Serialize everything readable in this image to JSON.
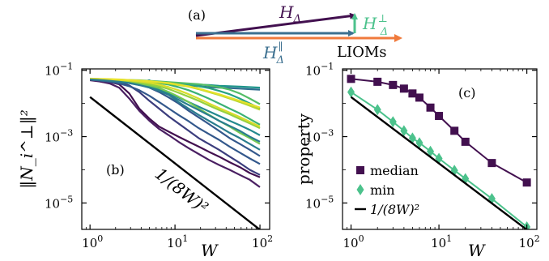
{
  "colors": {
    "purple": "#42104f",
    "teal": "#3b6f8f",
    "green": "#4cc28c",
    "orange": "#f07a3c",
    "black": "#000000"
  },
  "panel_a": {
    "label": "(a)",
    "h_delta": "H",
    "h_delta_sub": "Δ",
    "h_perp": "H",
    "h_perp_sub": "Δ",
    "h_perp_sup": "⊥",
    "h_par": "H",
    "h_par_sub": "Δ",
    "h_par_sup": "∥",
    "lioms": "LIOMs"
  },
  "chart_data": [
    {
      "panel": "(b)",
      "type": "line",
      "xlabel": "W",
      "ylabel": "‖N_i^⊥‖²",
      "x_scale": "log",
      "y_scale": "log",
      "xlim": [
        0.8,
        130
      ],
      "ylim": [
        1.6e-06,
        0.11
      ],
      "x_ticks": [
        1,
        10,
        100
      ],
      "x_tick_labels": [
        "10",
        "10",
        "10"
      ],
      "x_tick_exponents": [
        "0",
        "1",
        "2"
      ],
      "y_ticks": [
        1e-05,
        0.001,
        0.1
      ],
      "y_tick_labels": [
        "10",
        "10",
        "10"
      ],
      "y_tick_exponents": [
        "−5",
        "−3",
        "−1"
      ],
      "reference_line": {
        "label": "1/(8W)²",
        "x": [
          1,
          100
        ],
        "y": [
          0.015625,
          1.5625e-06
        ]
      },
      "x": [
        1,
        1.3,
        1.7,
        2.2,
        2.9,
        3.8,
        5,
        6.5,
        8.5,
        11,
        14.5,
        19,
        25,
        33,
        44,
        58,
        76,
        100
      ],
      "series": [
        {
          "color": "#42104f",
          "values": [
            0.051,
            0.048,
            0.044,
            0.038,
            0.02,
            0.007,
            0.0035,
            0.002,
            0.0014,
            0.001,
            0.0007,
            0.0005,
            0.00035,
            0.00025,
            0.00017,
            0.00012,
            8e-05,
            6e-05
          ]
        },
        {
          "color": "#4a1f62",
          "values": [
            0.05,
            0.046,
            0.04,
            0.03,
            0.014,
            0.006,
            0.003,
            0.0017,
            0.0011,
            0.0007,
            0.00045,
            0.0003,
            0.0002,
            0.00014,
            0.0001,
            7e-05,
            5e-05,
            3e-05
          ]
        },
        {
          "color": "#3b3d7d",
          "values": [
            0.052,
            0.05,
            0.047,
            0.043,
            0.035,
            0.022,
            0.012,
            0.007,
            0.004,
            0.0025,
            0.0015,
            0.0009,
            0.0006,
            0.0004,
            0.00025,
            0.00016,
            0.0001,
            7e-05
          ]
        },
        {
          "color": "#33588c",
          "values": [
            0.052,
            0.05,
            0.048,
            0.046,
            0.043,
            0.037,
            0.03,
            0.022,
            0.015,
            0.01,
            0.006,
            0.0038,
            0.0024,
            0.0015,
            0.0009,
            0.0006,
            0.0004,
            0.00026
          ]
        },
        {
          "color": "#2f6d8e",
          "values": [
            0.053,
            0.052,
            0.051,
            0.049,
            0.047,
            0.045,
            0.043,
            0.041,
            0.039,
            0.037,
            0.035,
            0.033,
            0.031,
            0.03,
            0.029,
            0.028,
            0.027,
            0.026
          ]
        },
        {
          "color": "#2a7d8e",
          "values": [
            0.053,
            0.051,
            0.049,
            0.047,
            0.044,
            0.042,
            0.05,
            0.03,
            0.018,
            0.011,
            0.007,
            0.0045,
            0.003,
            0.002,
            0.0013,
            0.0009,
            0.0006,
            0.0004
          ]
        },
        {
          "color": "#23898e",
          "values": [
            0.052,
            0.05,
            0.047,
            0.044,
            0.041,
            0.036,
            0.032,
            0.026,
            0.02,
            0.015,
            0.011,
            0.008,
            0.0058,
            0.0042,
            0.003,
            0.0022,
            0.0016,
            0.0011
          ]
        },
        {
          "color": "#1f958b",
          "values": [
            0.054,
            0.053,
            0.052,
            0.05,
            0.048,
            0.046,
            0.045,
            0.043,
            0.042,
            0.04,
            0.039,
            0.037,
            0.036,
            0.034,
            0.033,
            0.032,
            0.031,
            0.03
          ]
        },
        {
          "color": "#27a383",
          "values": [
            0.055,
            0.054,
            0.053,
            0.052,
            0.05,
            0.049,
            0.047,
            0.045,
            0.042,
            0.04,
            0.037,
            0.033,
            0.029,
            0.024,
            0.019,
            0.014,
            0.01,
            0.007
          ]
        },
        {
          "color": "#3bb175",
          "values": [
            0.055,
            0.054,
            0.053,
            0.051,
            0.05,
            0.047,
            0.045,
            0.041,
            0.037,
            0.031,
            0.025,
            0.019,
            0.014,
            0.01,
            0.007,
            0.005,
            0.0034,
            0.0023
          ]
        },
        {
          "color": "#54bd66",
          "values": [
            0.055,
            0.054,
            0.053,
            0.052,
            0.051,
            0.05,
            0.048,
            0.046,
            0.044,
            0.042,
            0.04,
            0.038,
            0.035,
            0.031,
            0.026,
            0.02,
            0.014,
            0.0095
          ]
        },
        {
          "color": "#74c855",
          "values": [
            0.054,
            0.053,
            0.051,
            0.048,
            0.044,
            0.04,
            0.035,
            0.029,
            0.022,
            0.016,
            0.011,
            0.007,
            0.0046,
            0.003,
            0.002,
            0.0013,
            0.0009,
            0.0006
          ]
        },
        {
          "color": "#95d03f",
          "values": [
            0.055,
            0.054,
            0.052,
            0.05,
            0.047,
            0.043,
            0.038,
            0.033,
            0.027,
            0.021,
            0.016,
            0.012,
            0.0087,
            0.0064,
            0.0047,
            0.0034,
            0.0025,
            0.0018
          ]
        },
        {
          "color": "#b8d630",
          "values": [
            0.055,
            0.054,
            0.053,
            0.052,
            0.05,
            0.048,
            0.046,
            0.043,
            0.04,
            0.036,
            0.032,
            0.027,
            0.022,
            0.018,
            0.014,
            0.011,
            0.0085,
            0.0065
          ]
        },
        {
          "color": "#d8dd2b",
          "values": [
            0.055,
            0.054,
            0.053,
            0.051,
            0.049,
            0.046,
            0.042,
            0.037,
            0.031,
            0.025,
            0.019,
            0.014,
            0.01,
            0.0073,
            0.0053,
            0.0039,
            0.0028,
            0.002
          ]
        },
        {
          "color": "#e6e12a",
          "values": [
            0.056,
            0.055,
            0.054,
            0.053,
            0.051,
            0.049,
            0.047,
            0.044,
            0.041,
            0.037,
            0.033,
            0.028,
            0.023,
            0.019,
            0.015,
            0.012,
            0.0095,
            0.0075
          ]
        },
        {
          "color": "#33588c",
          "values": [
            0.052,
            0.049,
            0.045,
            0.04,
            0.033,
            0.025,
            0.017,
            0.011,
            0.007,
            0.0045,
            0.0029,
            0.0018,
            0.0012,
            0.0008,
            0.0005,
            0.00033,
            0.00022,
            0.00015
          ]
        },
        {
          "color": "#2a7d8e",
          "values": [
            0.053,
            0.051,
            0.048,
            0.045,
            0.041,
            0.036,
            0.03,
            0.024,
            0.018,
            0.013,
            0.009,
            0.0063,
            0.0044,
            0.003,
            0.0021,
            0.0015,
            0.001,
            0.0007
          ]
        }
      ]
    },
    {
      "panel": "(c)",
      "type": "line",
      "xlabel": "W",
      "ylabel": "property",
      "x_scale": "log",
      "y_scale": "log",
      "xlim": [
        0.8,
        130
      ],
      "ylim": [
        1.6e-06,
        0.11
      ],
      "x_ticks": [
        1,
        10,
        100
      ],
      "x_tick_labels": [
        "10",
        "10",
        "10"
      ],
      "x_tick_exponents": [
        "0",
        "1",
        "2"
      ],
      "y_ticks": [
        1e-05,
        0.001,
        0.1
      ],
      "y_tick_labels": [
        "10",
        "10",
        "10"
      ],
      "y_tick_exponents": [
        "−5",
        "−3",
        "−1"
      ],
      "legend_position": "lower-left",
      "series": [
        {
          "name": "median",
          "marker": "square",
          "color": "#42104f",
          "x": [
            1,
            2,
            3,
            4,
            5,
            6,
            8,
            10,
            15,
            20,
            40,
            100
          ],
          "values": [
            0.055,
            0.045,
            0.036,
            0.028,
            0.02,
            0.015,
            0.0075,
            0.0042,
            0.0015,
            0.0007,
            0.00016,
            4.14e-05
          ]
        },
        {
          "name": "min",
          "marker": "diamond",
          "color": "#4cc28c",
          "x": [
            1,
            2,
            3,
            4,
            5,
            6,
            8,
            10,
            15,
            20,
            40,
            100
          ],
          "values": [
            0.022,
            0.0065,
            0.0028,
            0.0015,
            0.0009,
            0.00065,
            0.00036,
            0.00022,
            9.6e-05,
            5.4e-05,
            1.35e-05,
            1.9e-06
          ]
        },
        {
          "name": "1/(8W)²",
          "marker": "none",
          "color": "#000000",
          "x": [
            1,
            100
          ],
          "values": [
            0.015625,
            1.5625e-06
          ]
        }
      ]
    }
  ]
}
